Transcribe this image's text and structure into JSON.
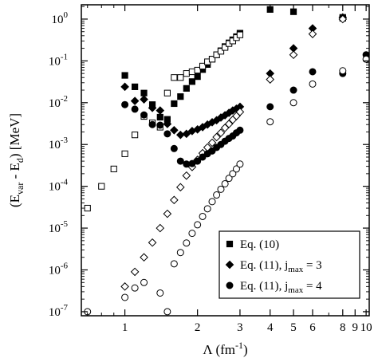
{
  "chart_data": {
    "type": "scatter",
    "title": "",
    "xlabel": "Λ (fm⁻¹)",
    "ylabel": "(E_var - E_d) [MeV]",
    "xscale": "log",
    "yscale": "log",
    "xlim": [
      0.66,
      10.3
    ],
    "ylim": [
      8e-08,
      2.2
    ],
    "grid": false,
    "legend_position": "bottom-right",
    "x_ticks": [
      {
        "value": 1,
        "label": "1"
      },
      {
        "value": 2,
        "label": "2"
      },
      {
        "value": 3,
        "label": "3"
      },
      {
        "value": 4,
        "label": "4"
      },
      {
        "value": 5,
        "label": "5"
      },
      {
        "value": 6,
        "label": "6"
      },
      {
        "value": 8,
        "label": "8"
      },
      {
        "value": 9,
        "label": "9"
      },
      {
        "value": 10,
        "label": "10"
      }
    ],
    "y_ticks": [
      {
        "value": 1e-07,
        "base": "10",
        "exp": "-7"
      },
      {
        "value": 1e-06,
        "base": "10",
        "exp": "-6"
      },
      {
        "value": 1e-05,
        "base": "10",
        "exp": "-5"
      },
      {
        "value": 0.0001,
        "base": "10",
        "exp": "-4"
      },
      {
        "value": 0.001,
        "base": "10",
        "exp": "-3"
      },
      {
        "value": 0.01,
        "base": "10",
        "exp": "-2"
      },
      {
        "value": 0.1,
        "base": "10",
        "exp": "-1"
      },
      {
        "value": 1,
        "base": "10",
        "exp": "0"
      }
    ],
    "series": [
      {
        "name": "Eq. (10)",
        "marker": "square",
        "filled": [
          {
            "x": 1.0,
            "y": 0.045
          },
          {
            "x": 1.1,
            "y": 0.024
          },
          {
            "x": 1.2,
            "y": 0.017
          },
          {
            "x": 1.3,
            "y": 0.009
          },
          {
            "x": 1.4,
            "y": 0.0045
          },
          {
            "x": 1.5,
            "y": 0.004
          },
          {
            "x": 1.6,
            "y": 0.0095
          },
          {
            "x": 1.7,
            "y": 0.014
          },
          {
            "x": 1.8,
            "y": 0.022
          },
          {
            "x": 1.9,
            "y": 0.032
          },
          {
            "x": 2.0,
            "y": 0.042
          },
          {
            "x": 2.1,
            "y": 0.062
          },
          {
            "x": 2.2,
            "y": 0.082
          },
          {
            "x": 2.3,
            "y": 0.11
          },
          {
            "x": 2.4,
            "y": 0.14
          },
          {
            "x": 2.5,
            "y": 0.175
          },
          {
            "x": 2.6,
            "y": 0.22
          },
          {
            "x": 2.7,
            "y": 0.27
          },
          {
            "x": 2.8,
            "y": 0.32
          },
          {
            "x": 2.9,
            "y": 0.38
          },
          {
            "x": 3.0,
            "y": 0.46
          },
          {
            "x": 4.0,
            "y": 1.7
          },
          {
            "x": 5.0,
            "y": 1.5
          },
          {
            "x": 8.0,
            "y": 1.1
          }
        ],
        "open": [
          {
            "x": 0.7,
            "y": 3e-05
          },
          {
            "x": 0.8,
            "y": 0.0001
          },
          {
            "x": 0.9,
            "y": 0.00026
          },
          {
            "x": 1.0,
            "y": 0.0006
          },
          {
            "x": 1.1,
            "y": 0.0017
          },
          {
            "x": 1.2,
            "y": 0.0047
          },
          {
            "x": 1.3,
            "y": 0.0033
          },
          {
            "x": 1.4,
            "y": 0.0026
          },
          {
            "x": 1.5,
            "y": 0.017
          },
          {
            "x": 1.6,
            "y": 0.04
          },
          {
            "x": 1.7,
            "y": 0.04
          },
          {
            "x": 1.8,
            "y": 0.05
          },
          {
            "x": 1.9,
            "y": 0.055
          },
          {
            "x": 2.0,
            "y": 0.06
          },
          {
            "x": 2.1,
            "y": 0.075
          },
          {
            "x": 2.2,
            "y": 0.095
          },
          {
            "x": 2.3,
            "y": 0.11
          },
          {
            "x": 2.4,
            "y": 0.14
          },
          {
            "x": 2.5,
            "y": 0.17
          },
          {
            "x": 2.6,
            "y": 0.21
          },
          {
            "x": 2.7,
            "y": 0.26
          },
          {
            "x": 2.8,
            "y": 0.3
          },
          {
            "x": 2.9,
            "y": 0.36
          },
          {
            "x": 3.0,
            "y": 0.42
          },
          {
            "x": 8.0,
            "y": 1.05
          }
        ]
      },
      {
        "name": "Eq. (11), j_max = 3",
        "marker": "diamond",
        "filled": [
          {
            "x": 1.0,
            "y": 0.024
          },
          {
            "x": 1.1,
            "y": 0.011
          },
          {
            "x": 1.2,
            "y": 0.012
          },
          {
            "x": 1.3,
            "y": 0.0075
          },
          {
            "x": 1.4,
            "y": 0.0065
          },
          {
            "x": 1.5,
            "y": 0.0031
          },
          {
            "x": 1.6,
            "y": 0.0022
          },
          {
            "x": 1.7,
            "y": 0.0017
          },
          {
            "x": 1.8,
            "y": 0.0018
          },
          {
            "x": 1.9,
            "y": 0.0021
          },
          {
            "x": 2.0,
            "y": 0.0023
          },
          {
            "x": 2.1,
            "y": 0.0026
          },
          {
            "x": 2.2,
            "y": 0.003
          },
          {
            "x": 2.3,
            "y": 0.0034
          },
          {
            "x": 2.4,
            "y": 0.0038
          },
          {
            "x": 2.5,
            "y": 0.0044
          },
          {
            "x": 2.6,
            "y": 0.005
          },
          {
            "x": 2.7,
            "y": 0.0057
          },
          {
            "x": 2.8,
            "y": 0.0065
          },
          {
            "x": 2.9,
            "y": 0.0072
          },
          {
            "x": 3.0,
            "y": 0.008
          },
          {
            "x": 4.0,
            "y": 0.05
          },
          {
            "x": 5.0,
            "y": 0.2
          },
          {
            "x": 6.0,
            "y": 0.6
          },
          {
            "x": 8.0,
            "y": 1.1
          }
        ],
        "open": [
          {
            "x": 1.0,
            "y": 4e-07
          },
          {
            "x": 1.1,
            "y": 9e-07
          },
          {
            "x": 1.2,
            "y": 2e-06
          },
          {
            "x": 1.3,
            "y": 4.5e-06
          },
          {
            "x": 1.4,
            "y": 1e-05
          },
          {
            "x": 1.5,
            "y": 2.2e-05
          },
          {
            "x": 1.6,
            "y": 4.7e-05
          },
          {
            "x": 1.7,
            "y": 9.5e-05
          },
          {
            "x": 1.8,
            "y": 0.00018
          },
          {
            "x": 1.9,
            "y": 0.00029
          },
          {
            "x": 2.0,
            "y": 0.00043
          },
          {
            "x": 2.1,
            "y": 0.00062
          },
          {
            "x": 2.2,
            "y": 0.00085
          },
          {
            "x": 2.3,
            "y": 0.0011
          },
          {
            "x": 2.4,
            "y": 0.0015
          },
          {
            "x": 2.5,
            "y": 0.0019
          },
          {
            "x": 2.6,
            "y": 0.0025
          },
          {
            "x": 2.7,
            "y": 0.0031
          },
          {
            "x": 2.8,
            "y": 0.0039
          },
          {
            "x": 2.9,
            "y": 0.0048
          },
          {
            "x": 3.0,
            "y": 0.006
          },
          {
            "x": 4.0,
            "y": 0.036
          },
          {
            "x": 5.0,
            "y": 0.14
          },
          {
            "x": 6.0,
            "y": 0.44
          },
          {
            "x": 8.0,
            "y": 1.0
          }
        ]
      },
      {
        "name": "Eq. (11), j_max = 4",
        "marker": "circle",
        "filled": [
          {
            "x": 1.0,
            "y": 0.009
          },
          {
            "x": 1.1,
            "y": 0.007
          },
          {
            "x": 1.2,
            "y": 0.0051
          },
          {
            "x": 1.3,
            "y": 0.003
          },
          {
            "x": 1.4,
            "y": 0.0029
          },
          {
            "x": 1.5,
            "y": 0.0018
          },
          {
            "x": 1.6,
            "y": 0.0008
          },
          {
            "x": 1.7,
            "y": 0.0004
          },
          {
            "x": 1.8,
            "y": 0.00034
          },
          {
            "x": 1.9,
            "y": 0.00035
          },
          {
            "x": 2.0,
            "y": 0.0004
          },
          {
            "x": 2.1,
            "y": 0.0005
          },
          {
            "x": 2.2,
            "y": 0.0006
          },
          {
            "x": 2.3,
            "y": 0.0007
          },
          {
            "x": 2.4,
            "y": 0.00085
          },
          {
            "x": 2.5,
            "y": 0.001
          },
          {
            "x": 2.6,
            "y": 0.0012
          },
          {
            "x": 2.7,
            "y": 0.0014
          },
          {
            "x": 2.8,
            "y": 0.0016
          },
          {
            "x": 2.9,
            "y": 0.0019
          },
          {
            "x": 3.0,
            "y": 0.0022
          },
          {
            "x": 4.0,
            "y": 0.008
          },
          {
            "x": 5.0,
            "y": 0.02
          },
          {
            "x": 6.0,
            "y": 0.055
          },
          {
            "x": 8.0,
            "y": 0.05
          },
          {
            "x": 10.0,
            "y": 0.14
          }
        ],
        "open": [
          {
            "x": 0.7,
            "y": 1e-07
          },
          {
            "x": 1.0,
            "y": 2.2e-07
          },
          {
            "x": 1.1,
            "y": 3.7e-07
          },
          {
            "x": 1.2,
            "y": 5e-07
          },
          {
            "x": 1.4,
            "y": 2.8e-07
          },
          {
            "x": 1.5,
            "y": 1e-07
          },
          {
            "x": 1.6,
            "y": 1.4e-06
          },
          {
            "x": 1.7,
            "y": 2.6e-06
          },
          {
            "x": 1.8,
            "y": 4.4e-06
          },
          {
            "x": 1.9,
            "y": 7.5e-06
          },
          {
            "x": 2.0,
            "y": 1.2e-05
          },
          {
            "x": 2.1,
            "y": 1.9e-05
          },
          {
            "x": 2.2,
            "y": 2.9e-05
          },
          {
            "x": 2.3,
            "y": 4.3e-05
          },
          {
            "x": 2.4,
            "y": 6.2e-05
          },
          {
            "x": 2.5,
            "y": 8.5e-05
          },
          {
            "x": 2.6,
            "y": 0.000115
          },
          {
            "x": 2.7,
            "y": 0.000155
          },
          {
            "x": 2.8,
            "y": 0.0002
          },
          {
            "x": 2.9,
            "y": 0.00026
          },
          {
            "x": 3.0,
            "y": 0.00034
          },
          {
            "x": 4.0,
            "y": 0.0035
          },
          {
            "x": 5.0,
            "y": 0.01
          },
          {
            "x": 6.0,
            "y": 0.028
          },
          {
            "x": 8.0,
            "y": 0.058
          },
          {
            "x": 10.0,
            "y": 0.11
          }
        ]
      }
    ]
  },
  "legend": {
    "items": [
      {
        "marker": "square",
        "text_main": "Eq. (10)",
        "sub_prefix": "",
        "sub": "",
        "suffix": ""
      },
      {
        "marker": "diamond",
        "text_main": "Eq. (11), j",
        "sub_prefix": "",
        "sub": "max",
        "suffix": " = 3"
      },
      {
        "marker": "circle",
        "text_main": "Eq. (11), j",
        "sub_prefix": "",
        "sub": "max",
        "suffix": " = 4"
      }
    ]
  },
  "axis_titles": {
    "x_main": "Λ (fm",
    "x_sup": "-1",
    "x_close": ")",
    "y_a": "(E",
    "y_sub1": "var",
    "y_b": " - E",
    "y_sub2": "d",
    "y_c": ") [MeV]"
  }
}
